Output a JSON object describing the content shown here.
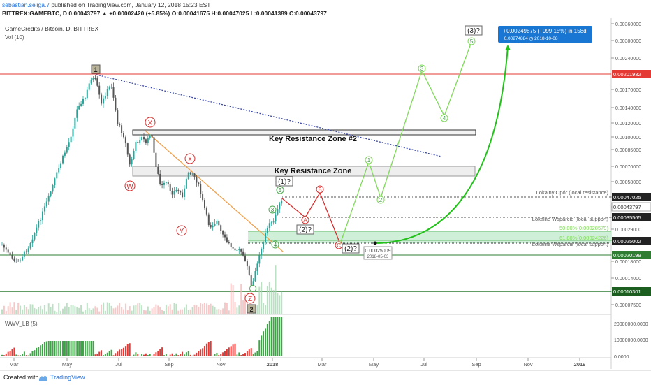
{
  "header": {
    "author": "sebastian.seliga.7",
    "published_text": " published on TradingView.com, January 12, 2018 15:23 EST",
    "symbol_line": "BITTREX:GAMEBTC, D  0.00043797  ▲ +0.00002420 (+5.85%)  O:0.00041675  H:0.00047025  L:0.00041389  C:0.00043797"
  },
  "chart": {
    "title": "GameCredits / Bitcoin, D, BITTREX",
    "vol_label": "Vol (10)",
    "wwv_label": "WWV_LB (5)"
  },
  "annotations": {
    "resistance_zone_2": "Key Resistance Zone #2",
    "resistance_zone": "Key Resistance Zone",
    "local_resistance": "Lokalny Opór (local resistance)",
    "local_support_1": "Lokalne Wsparcie (local support)",
    "local_support_2": "Lokalne Wsparcie (local support)",
    "fib_50": "50.00%(0.00028579)",
    "fib_618": "61.80%(0.00024226)",
    "point_value": "0.00025009",
    "point_date": "2018-05-03",
    "target_value": "+0.00249875 (+999.15%) in 158d",
    "target_detail": "0.00274884  ◷ 2018-10-08",
    "wave_1_label": "1",
    "wave_2_label": "2",
    "wave_w": "W",
    "wave_x1": "X",
    "wave_y": "Y",
    "wave_x2": "X",
    "wave_z": "Z",
    "wave_a": "A",
    "wave_b": "B",
    "wave_c": "C",
    "wave_1q": "(1)?",
    "wave_2q_mid": "(2)?",
    "wave_2q": "(2)?",
    "wave_3q": "(3)?",
    "proj_1": "1",
    "proj_2": "2",
    "proj_3": "3",
    "proj_4": "4",
    "proj_5": "5",
    "imp_3": "3",
    "imp_4": "4",
    "imp_5": "5",
    "imp_5b": "5"
  },
  "price_axis": {
    "ticks": [
      "0.00360000",
      "0.00300000",
      "0.00240000",
      "0.00170000",
      "0.00140000",
      "0.00120000",
      "0.00100000",
      "0.00085000",
      "0.00070000",
      "0.00058000",
      "0.00047025",
      "0.00043797",
      "0.00035565",
      "0.00029000",
      "0.00025002",
      "0.00020199",
      "0.00018000",
      "0.00014000",
      "0.00010301",
      "0.00007500"
    ],
    "highlights": {
      "red": "0.00201932",
      "black_1": "0.00047025",
      "current": "0.00043797",
      "black_2": "0.00035565",
      "black_3": "0.00025002",
      "green_1": "0.00020199",
      "green_2": "0.00010301"
    }
  },
  "indicator_axis": {
    "ticks": [
      "20000000.0000",
      "10000000.0000",
      "0.0000"
    ]
  },
  "time_axis": {
    "ticks": [
      "Mar",
      "May",
      "Jul",
      "Sep",
      "Nov",
      "2018",
      "Mar",
      "May",
      "Jul",
      "Sep",
      "Nov",
      "2019"
    ]
  },
  "footer": {
    "created_with": "Created with",
    "brand": "TradingView"
  },
  "colors": {
    "up": "#26a69a",
    "down": "#555555",
    "vol_up": "#a5d6b0",
    "vol_down": "#f3b5b5",
    "wwv_up": "#3fa447",
    "wwv_down": "#e53935",
    "wave_red": "#d32f2f",
    "projection_green": "#7ed957",
    "target_blue": "#1976d2",
    "resistance_red": "#e53935",
    "support_green": "#2e7d32"
  },
  "chart_data": {
    "type": "candlestick",
    "title": "GameCredits / Bitcoin, D, BITTREX",
    "symbol": "BITTREX:GAMEBTC",
    "interval": "D",
    "scale": "log",
    "y_unit": "BTC",
    "x": [
      "2017-02",
      "2017-03",
      "2017-04",
      "2017-05",
      "2017-06",
      "2017-07",
      "2017-08",
      "2017-09",
      "2017-10",
      "2017-11",
      "2017-12",
      "2018-01"
    ],
    "close": [
      0.00019,
      0.00018,
      0.00048,
      0.0012,
      0.0019,
      0.0011,
      0.00085,
      0.00058,
      0.00045,
      0.00032,
      0.00012,
      0.00043797
    ],
    "last": {
      "open": 0.00041675,
      "high": 0.00047025,
      "low": 0.00041389,
      "close": 0.00043797,
      "change": 2.42e-05,
      "change_pct": 5.85
    },
    "levels": [
      {
        "name": "resistance",
        "value": 0.00201932
      },
      {
        "name": "local resistance",
        "value": 0.00047025
      },
      {
        "name": "local support",
        "value": 0.00035565
      },
      {
        "name": "support",
        "value": 0.00025002
      },
      {
        "name": "local support",
        "value": 0.00020199
      },
      {
        "name": "low",
        "value": 0.00010301
      }
    ],
    "fibonacci": [
      {
        "level": 0.5,
        "value": 0.00028579
      },
      {
        "level": 0.618,
        "value": 0.00024226
      }
    ],
    "projection": [
      {
        "date": "2018-05-03",
        "value": 0.00025009
      },
      {
        "date": "2018-10-08",
        "value": 0.00274884
      }
    ],
    "target_change": 0.00249875,
    "target_change_pct": 999.15,
    "target_days": 158
  }
}
